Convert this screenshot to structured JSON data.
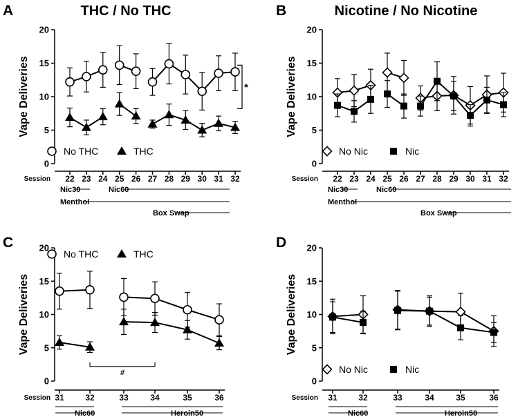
{
  "chart_data": [
    {
      "panel_letter": "A",
      "title": "THC / No THC",
      "type": "line",
      "ylabel": "Vape Deliveries",
      "ylim": [
        0,
        20
      ],
      "yticks": [
        0,
        5,
        10,
        15,
        20
      ],
      "x_axis_name": "Session",
      "x": [
        22,
        23,
        24,
        25,
        26,
        27,
        28,
        29,
        30,
        31,
        32
      ],
      "segments": [
        [
          0,
          2
        ],
        [
          3,
          4
        ],
        [
          5,
          10
        ]
      ],
      "series": [
        {
          "name": "No THC",
          "marker": "circle-open",
          "values": [
            12.2,
            13.0,
            14.0,
            14.7,
            13.8,
            12.2,
            14.9,
            13.3,
            10.8,
            13.5,
            13.7
          ],
          "errors": [
            2.1,
            2.3,
            2.6,
            2.9,
            2.6,
            2.0,
            3.0,
            2.9,
            2.8,
            2.6,
            2.8
          ]
        },
        {
          "name": "THC",
          "marker": "triangle-filled",
          "values": [
            6.9,
            5.4,
            7.0,
            8.9,
            7.1,
            5.9,
            7.3,
            6.5,
            5.0,
            6.0,
            5.4
          ],
          "errors": [
            1.4,
            1.1,
            1.2,
            1.7,
            1.1,
            0.6,
            1.6,
            1.4,
            1.0,
            1.1,
            0.9
          ]
        }
      ],
      "condition_lines": [
        {
          "label": "Nic30",
          "from": 22,
          "to": 24
        },
        {
          "label": "Nic60",
          "from": 25,
          "to": 32
        },
        {
          "label": "Menthol",
          "from": 22,
          "to": 32
        },
        {
          "label": "Box Swap",
          "from": 27,
          "to": 32
        }
      ],
      "annotation": {
        "text": "*",
        "type": "bracket"
      },
      "legend": "bottom-left"
    },
    {
      "panel_letter": "B",
      "title": "Nicotine / No Nicotine",
      "type": "line",
      "ylabel": "Vape Deliveries",
      "ylim": [
        0,
        20
      ],
      "yticks": [
        0,
        5,
        10,
        15,
        20
      ],
      "x_axis_name": "Session",
      "x": [
        22,
        23,
        24,
        25,
        26,
        27,
        28,
        29,
        30,
        31,
        32
      ],
      "segments": [
        [
          0,
          2
        ],
        [
          3,
          4
        ],
        [
          5,
          10
        ]
      ],
      "series": [
        {
          "name": "No Nic",
          "marker": "diamond-open",
          "values": [
            10.6,
            10.9,
            11.7,
            13.6,
            12.8,
            9.8,
            10.1,
            10.2,
            8.7,
            10.3,
            10.6
          ],
          "errors": [
            2.1,
            2.4,
            2.4,
            2.9,
            2.6,
            1.8,
            2.2,
            2.8,
            2.8,
            2.8,
            2.9
          ]
        },
        {
          "name": "Nic",
          "marker": "square-filled",
          "values": [
            8.7,
            7.8,
            9.6,
            10.4,
            8.6,
            8.6,
            12.3,
            10.1,
            7.2,
            9.5,
            8.8
          ],
          "errors": [
            1.7,
            1.6,
            2.1,
            2.0,
            1.8,
            1.5,
            2.9,
            2.2,
            1.6,
            1.9,
            1.8
          ]
        }
      ],
      "condition_lines": [
        {
          "label": "Nic30",
          "from": 22,
          "to": 24
        },
        {
          "label": "Nic60",
          "from": 25,
          "to": 32
        },
        {
          "label": "Menthol",
          "from": 22,
          "to": 32
        },
        {
          "label": "Box Swap",
          "from": 27,
          "to": 32
        }
      ],
      "legend": "bottom-left"
    },
    {
      "panel_letter": "C",
      "title": "",
      "type": "line",
      "ylabel": "Vape Deliveries",
      "ylim": [
        0,
        20
      ],
      "yticks": [
        0,
        5,
        10,
        15,
        20
      ],
      "x_axis_name": "Session",
      "x": [
        31,
        32,
        33,
        34,
        35,
        36
      ],
      "segments": [
        [
          0,
          1
        ],
        [
          2,
          5
        ]
      ],
      "series": [
        {
          "name": "No THC",
          "marker": "circle-open",
          "values": [
            13.5,
            13.7,
            12.6,
            12.4,
            10.7,
            9.2
          ],
          "errors": [
            2.7,
            2.8,
            2.8,
            2.5,
            2.6,
            2.4
          ]
        },
        {
          "name": "THC",
          "marker": "triangle-filled",
          "values": [
            5.8,
            5.1,
            8.9,
            8.8,
            7.7,
            5.7
          ],
          "errors": [
            1.0,
            0.8,
            1.9,
            1.5,
            1.4,
            1.0
          ]
        }
      ],
      "condition_lines": [
        {
          "label": "Nic60",
          "from": 31,
          "to": 32
        },
        {
          "label": "Heroin50",
          "from": 33,
          "to": 36
        }
      ],
      "annotation": {
        "text": "#",
        "type": "bracket",
        "from": 32,
        "to": 34,
        "y": 2.2
      },
      "legend": "top-left"
    },
    {
      "panel_letter": "D",
      "title": "",
      "type": "line",
      "ylabel": "Vape Deliveries",
      "ylim": [
        0,
        20
      ],
      "yticks": [
        0,
        5,
        10,
        15,
        20
      ],
      "x_axis_name": "Session",
      "x": [
        31,
        32,
        33,
        34,
        35,
        36
      ],
      "segments": [
        [
          0,
          1
        ],
        [
          2,
          5
        ]
      ],
      "series": [
        {
          "name": "No Nic",
          "marker": "diamond-open",
          "values": [
            9.7,
            10.0,
            10.7,
            10.5,
            10.4,
            7.5
          ],
          "errors": [
            2.6,
            2.8,
            2.9,
            2.3,
            2.8,
            2.3
          ]
        },
        {
          "name": "Nic",
          "marker": "square-filled",
          "values": [
            9.6,
            8.8,
            10.6,
            10.5,
            8.0,
            7.3
          ],
          "errors": [
            2.3,
            1.7,
            2.9,
            2.1,
            1.8,
            1.5
          ]
        }
      ],
      "condition_lines": [
        {
          "label": "Nic60",
          "from": 31,
          "to": 32
        },
        {
          "label": "Heroin50",
          "from": 33,
          "to": 36
        }
      ],
      "legend": "bottom-left"
    }
  ]
}
